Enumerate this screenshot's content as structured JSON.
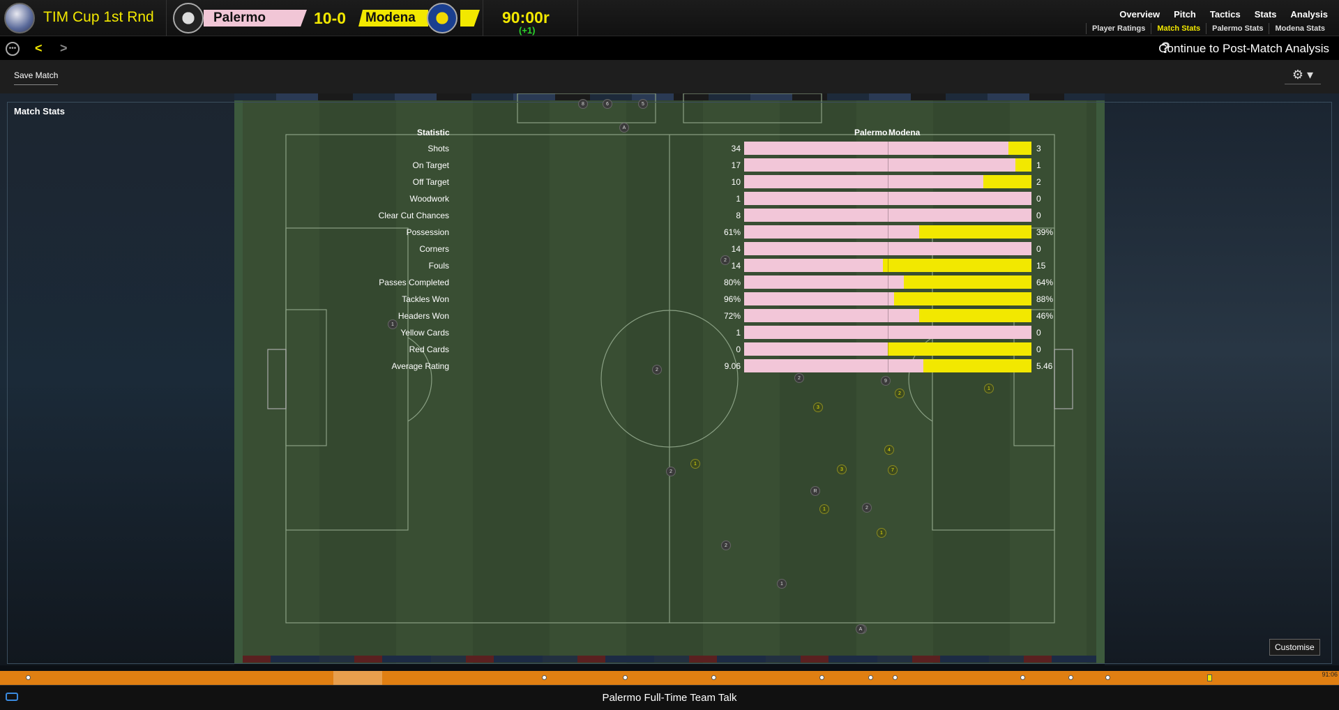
{
  "header": {
    "competition": "TIM Cup 1st Rnd",
    "home_team": "Palermo",
    "away_team": "Modena",
    "score": "10-0",
    "clock": "90:00r",
    "added_time": "(+1)",
    "nav_main": [
      "Overview",
      "Pitch",
      "Tactics",
      "Stats",
      "Analysis"
    ],
    "nav_sub": [
      "Player Ratings",
      "Match Stats",
      "Palermo Stats",
      "Modena Stats"
    ],
    "nav_sub_active": "Match Stats",
    "colors": {
      "accent": "#f2e800",
      "home": "#f2c6d8",
      "away": "#f2e800",
      "added": "#2bd62b"
    }
  },
  "bar2": {
    "continue_label": "Continue to Post-Match Analysis",
    "help_icon": "?",
    "back_icon": "<",
    "forward_icon": ">"
  },
  "toolbar": {
    "save_label": "Save Match",
    "settings_icon": "gear-icon"
  },
  "panel": {
    "title": "Match Stats",
    "customise_label": "Customise"
  },
  "stats": {
    "col_statistic": "Statistic",
    "col_home": "Palermo",
    "col_away": "Modena",
    "rows": [
      {
        "label": "Shots",
        "home": "34",
        "away": "3",
        "home_share": 0.919
      },
      {
        "label": "On Target",
        "home": "17",
        "away": "1",
        "home_share": 0.944
      },
      {
        "label": "Off Target",
        "home": "10",
        "away": "2",
        "home_share": 0.833
      },
      {
        "label": "Woodwork",
        "home": "1",
        "away": "0",
        "home_share": 1.0
      },
      {
        "label": "Clear Cut Chances",
        "home": "8",
        "away": "0",
        "home_share": 1.0
      },
      {
        "label": "Possession",
        "home": "61%",
        "away": "39%",
        "home_share": 0.61
      },
      {
        "label": "Corners",
        "home": "14",
        "away": "0",
        "home_share": 1.0
      },
      {
        "label": "Fouls",
        "home": "14",
        "away": "15",
        "home_share": 0.483
      },
      {
        "label": "Passes Completed",
        "home": "80%",
        "away": "64%",
        "home_share": 0.556
      },
      {
        "label": "Tackles Won",
        "home": "96%",
        "away": "88%",
        "home_share": 0.522
      },
      {
        "label": "Headers Won",
        "home": "72%",
        "away": "46%",
        "home_share": 0.61
      },
      {
        "label": "Yellow Cards",
        "home": "1",
        "away": "0",
        "home_share": 1.0
      },
      {
        "label": "Red Cards",
        "home": "0",
        "away": "0",
        "home_share": 0.5
      },
      {
        "label": "Average Rating",
        "home": "9.06",
        "away": "5.46",
        "home_share": 0.624
      }
    ]
  },
  "players": [
    {
      "team": "home",
      "label": "8"
    },
    {
      "team": "home",
      "label": "6"
    },
    {
      "team": "home",
      "label": "5"
    },
    {
      "team": "home",
      "label": "A"
    },
    {
      "team": "home",
      "label": "1"
    },
    {
      "team": "home",
      "label": "2"
    },
    {
      "team": "home",
      "label": "2"
    },
    {
      "team": "home",
      "label": "2"
    },
    {
      "team": "home",
      "label": "9"
    },
    {
      "team": "home",
      "label": "2"
    },
    {
      "team": "home",
      "label": "R"
    },
    {
      "team": "home",
      "label": "2"
    },
    {
      "team": "home",
      "label": "2"
    },
    {
      "team": "home",
      "label": "1"
    },
    {
      "team": "home",
      "label": "1"
    },
    {
      "team": "home",
      "label": "A"
    },
    {
      "team": "away",
      "label": "1"
    },
    {
      "team": "away",
      "label": "2"
    },
    {
      "team": "away",
      "label": "3"
    },
    {
      "team": "away",
      "label": "4"
    },
    {
      "team": "away",
      "label": "7"
    },
    {
      "team": "away",
      "label": "3"
    },
    {
      "team": "away",
      "label": "1"
    },
    {
      "team": "away",
      "label": "1"
    },
    {
      "team": "away",
      "label": "1"
    }
  ],
  "timeline": {
    "time_label": "91:06"
  },
  "bottom": {
    "label": "Palermo Full-Time Team Talk"
  }
}
